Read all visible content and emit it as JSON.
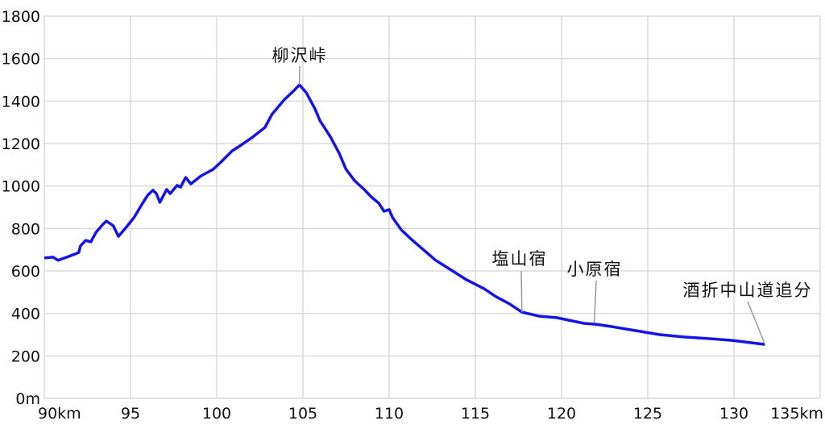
{
  "chart_data": {
    "type": "line",
    "title": "",
    "xlabel": "",
    "ylabel": "",
    "xlim": [
      90,
      135
    ],
    "ylim": [
      0,
      1800
    ],
    "grid": true,
    "x_ticks": [
      90,
      95,
      100,
      105,
      110,
      115,
      120,
      125,
      130,
      135
    ],
    "x_tick_labels": [
      "90km",
      "95",
      "100",
      "105",
      "110",
      "115",
      "120",
      "125",
      "130",
      "135km"
    ],
    "y_ticks": [
      0,
      200,
      400,
      600,
      800,
      1000,
      1200,
      1400,
      1600,
      1800
    ],
    "y_tick_labels": [
      "0m",
      "200",
      "400",
      "600",
      "800",
      "1000",
      "1200",
      "1400",
      "1600",
      "1800"
    ],
    "series": [
      {
        "color": "#1414e6",
        "x": [
          90,
          90.5,
          90.8,
          91.4,
          92.0,
          92.1,
          92.4,
          92.7,
          93.0,
          93.4,
          93.6,
          94.0,
          94.3,
          94.7,
          95.2,
          95.7,
          96.0,
          96.3,
          96.5,
          96.7,
          97.1,
          97.3,
          97.7,
          97.9,
          98.2,
          98.5,
          99.1,
          99.8,
          100.3,
          100.9,
          101.4,
          102.1,
          102.8,
          103.2,
          103.9,
          104.5,
          104.8,
          105.2,
          105.7,
          106.0,
          106.6,
          107.1,
          107.5,
          108.0,
          108.6,
          109.0,
          109.4,
          109.7,
          110.0,
          110.2,
          110.7,
          111.3,
          112.0,
          112.7,
          113.6,
          114.5,
          115.5,
          116.2,
          117.0,
          117.7,
          118.7,
          119.7,
          120.6,
          121.3,
          122.0,
          122.9,
          124.3,
          125.7,
          127.1,
          128.6,
          129.9,
          131.8
        ],
        "y": [
          661,
          665,
          650,
          668,
          687,
          718,
          744,
          737,
          782,
          820,
          835,
          813,
          763,
          801,
          851,
          919,
          957,
          980,
          964,
          923,
          984,
          964,
          1003,
          995,
          1040,
          1010,
          1048,
          1079,
          1117,
          1166,
          1192,
          1231,
          1276,
          1337,
          1405,
          1451,
          1477,
          1439,
          1363,
          1306,
          1231,
          1155,
          1079,
          1025,
          980,
          946,
          919,
          881,
          889,
          851,
          794,
          748,
          699,
          650,
          604,
          558,
          517,
          479,
          444,
          406,
          387,
          380,
          365,
          353,
          349,
          338,
          319,
          300,
          289,
          281,
          273,
          254
        ]
      }
    ],
    "annotations": [
      {
        "text": "柳沢峠",
        "x": 104.8,
        "y": 1477
      },
      {
        "text": "塩山宿",
        "x": 117.7,
        "y": 406
      },
      {
        "text": "小原宿",
        "x": 121.9,
        "y": 355
      },
      {
        "text": "酒折中山道追分",
        "x": 131.8,
        "y": 254
      }
    ]
  }
}
